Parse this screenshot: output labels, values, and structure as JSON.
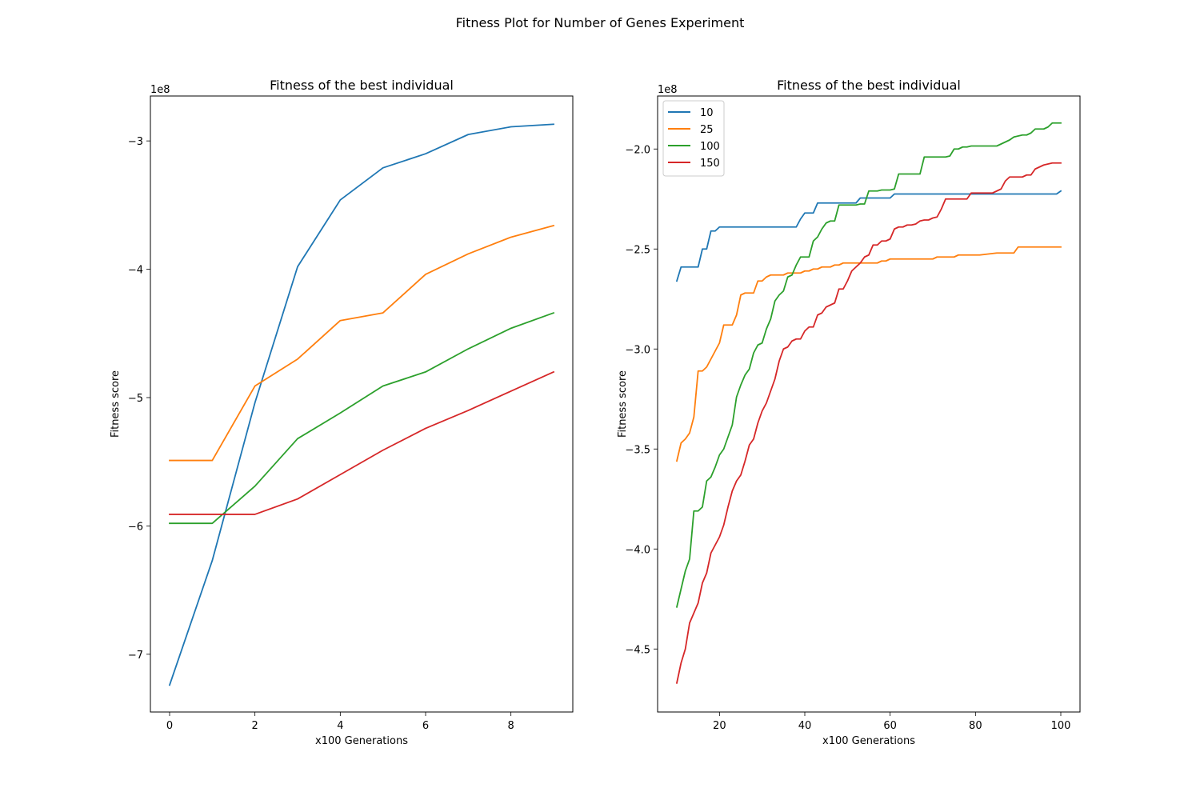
{
  "figure": {
    "suptitle": "Fitness Plot for Number of Genes Experiment"
  },
  "chart_data": [
    {
      "type": "line",
      "title": "Fitness of the best individual",
      "xlabel": "x100 Generations",
      "ylabel": "Fitness score",
      "y_multiplier": "1e8",
      "xlim": [
        -0.45,
        9.45
      ],
      "ylim": [
        -7.45,
        -2.65
      ],
      "xticks": [
        0,
        2,
        4,
        6,
        8
      ],
      "yticks": [
        -7,
        -6,
        -5,
        -4,
        -3
      ],
      "legend": null,
      "series": [
        {
          "name": "10",
          "color": "#1f77b4",
          "x": [
            0,
            1,
            2,
            3,
            4,
            5,
            6,
            7,
            8,
            9
          ],
          "y": [
            -7.24,
            -6.27,
            -5.04,
            -3.98,
            -3.46,
            -3.21,
            -3.1,
            -2.95,
            -2.89,
            -2.87
          ]
        },
        {
          "name": "25",
          "color": "#ff7f0e",
          "x": [
            0,
            1,
            2,
            3,
            4,
            5,
            6,
            7,
            8,
            9
          ],
          "y": [
            -5.49,
            -5.49,
            -4.91,
            -4.7,
            -4.4,
            -4.34,
            -4.04,
            -3.88,
            -3.75,
            -3.66
          ]
        },
        {
          "name": "100",
          "color": "#2ca02c",
          "x": [
            0,
            1,
            2,
            3,
            4,
            5,
            6,
            7,
            8,
            9
          ],
          "y": [
            -5.98,
            -5.98,
            -5.69,
            -5.32,
            -5.12,
            -4.91,
            -4.8,
            -4.62,
            -4.46,
            -4.34
          ]
        },
        {
          "name": "150",
          "color": "#d62728",
          "x": [
            0,
            1,
            2,
            3,
            4,
            5,
            6,
            7,
            8,
            9
          ],
          "y": [
            -5.91,
            -5.91,
            -5.91,
            -5.79,
            -5.6,
            -5.41,
            -5.24,
            -5.1,
            -4.95,
            -4.8
          ]
        }
      ]
    },
    {
      "type": "line",
      "title": "Fitness of the best individual",
      "xlabel": "x100 Generations",
      "ylabel": "Fitness score",
      "y_multiplier": "1e8",
      "xlim": [
        5.5,
        104.5
      ],
      "ylim": [
        -4.815,
        -1.735
      ],
      "xticks": [
        20,
        40,
        60,
        80,
        100
      ],
      "yticks": [
        -4.5,
        -4.0,
        -3.5,
        -3.0,
        -2.5,
        -2.0
      ],
      "tick_format": "fixed1",
      "legend": "upper-left",
      "series": [
        {
          "name": "10",
          "color": "#1f77b4",
          "x": [
            10,
            11,
            15,
            16,
            17,
            18,
            19,
            20,
            38,
            39,
            40,
            42,
            43,
            52,
            53,
            60,
            61,
            99,
            100
          ],
          "y": [
            -2.66,
            -2.59,
            -2.59,
            -2.5,
            -2.5,
            -2.41,
            -2.41,
            -2.39,
            -2.39,
            -2.35,
            -2.32,
            -2.32,
            -2.27,
            -2.27,
            -2.245,
            -2.245,
            -2.225,
            -2.225,
            -2.21
          ]
        },
        {
          "name": "25",
          "color": "#ff7f0e",
          "x": [
            10,
            11,
            12,
            13,
            14,
            15,
            16,
            17,
            18,
            19,
            20,
            21,
            22,
            23,
            24,
            25,
            26,
            27,
            28,
            29,
            30,
            31,
            32,
            33,
            34,
            35,
            36,
            37,
            38,
            39,
            40,
            41,
            42,
            43,
            44,
            45,
            46,
            47,
            48,
            49,
            50,
            55,
            56,
            57,
            58,
            59,
            60,
            65,
            66,
            70,
            71,
            75,
            76,
            80,
            81,
            85,
            86,
            89,
            90,
            100
          ],
          "y": [
            -3.56,
            -3.47,
            -3.45,
            -3.42,
            -3.34,
            -3.11,
            -3.11,
            -3.09,
            -3.05,
            -3.01,
            -2.97,
            -2.88,
            -2.88,
            -2.88,
            -2.83,
            -2.73,
            -2.72,
            -2.72,
            -2.72,
            -2.66,
            -2.66,
            -2.64,
            -2.63,
            -2.63,
            -2.63,
            -2.63,
            -2.62,
            -2.62,
            -2.62,
            -2.62,
            -2.61,
            -2.61,
            -2.6,
            -2.6,
            -2.59,
            -2.59,
            -2.59,
            -2.58,
            -2.58,
            -2.57,
            -2.57,
            -2.57,
            -2.57,
            -2.57,
            -2.56,
            -2.56,
            -2.55,
            -2.55,
            -2.55,
            -2.55,
            -2.54,
            -2.54,
            -2.53,
            -2.53,
            -2.53,
            -2.52,
            -2.52,
            -2.52,
            -2.49,
            -2.49
          ]
        },
        {
          "name": "100",
          "color": "#2ca02c",
          "x": [
            10,
            11,
            12,
            13,
            14,
            15,
            16,
            17,
            18,
            19,
            20,
            21,
            22,
            23,
            24,
            25,
            26,
            27,
            28,
            29,
            30,
            31,
            32,
            33,
            34,
            35,
            36,
            37,
            38,
            39,
            40,
            41,
            42,
            43,
            44,
            45,
            46,
            47,
            48,
            49,
            50,
            51,
            52,
            53,
            54,
            55,
            56,
            57,
            58,
            59,
            60,
            61,
            62,
            63,
            64,
            65,
            66,
            67,
            68,
            69,
            70,
            71,
            72,
            73,
            74,
            75,
            76,
            77,
            78,
            79,
            80,
            85,
            86,
            87,
            88,
            89,
            90,
            91,
            92,
            93,
            94,
            95,
            96,
            97,
            98,
            99,
            100
          ],
          "y": [
            -4.29,
            -4.2,
            -4.11,
            -4.05,
            -3.81,
            -3.81,
            -3.79,
            -3.66,
            -3.64,
            -3.59,
            -3.53,
            -3.5,
            -3.44,
            -3.38,
            -3.24,
            -3.18,
            -3.13,
            -3.1,
            -3.02,
            -2.98,
            -2.97,
            -2.9,
            -2.85,
            -2.76,
            -2.73,
            -2.71,
            -2.64,
            -2.63,
            -2.58,
            -2.54,
            -2.54,
            -2.54,
            -2.46,
            -2.44,
            -2.4,
            -2.37,
            -2.36,
            -2.36,
            -2.28,
            -2.28,
            -2.28,
            -2.28,
            -2.28,
            -2.275,
            -2.275,
            -2.21,
            -2.21,
            -2.21,
            -2.205,
            -2.205,
            -2.205,
            -2.2,
            -2.125,
            -2.125,
            -2.125,
            -2.125,
            -2.125,
            -2.125,
            -2.04,
            -2.04,
            -2.04,
            -2.04,
            -2.04,
            -2.04,
            -2.035,
            -2.0,
            -2.0,
            -1.99,
            -1.99,
            -1.985,
            -1.985,
            -1.985,
            -1.975,
            -1.965,
            -1.955,
            -1.94,
            -1.935,
            -1.93,
            -1.93,
            -1.92,
            -1.9,
            -1.9,
            -1.9,
            -1.89,
            -1.87,
            -1.87,
            -1.87
          ]
        },
        {
          "name": "150",
          "color": "#d62728",
          "x": [
            10,
            11,
            12,
            13,
            14,
            15,
            16,
            17,
            18,
            19,
            20,
            21,
            22,
            23,
            24,
            25,
            26,
            27,
            28,
            29,
            30,
            31,
            32,
            33,
            34,
            35,
            36,
            37,
            38,
            39,
            40,
            41,
            42,
            43,
            44,
            45,
            46,
            47,
            48,
            49,
            50,
            51,
            52,
            53,
            54,
            55,
            56,
            57,
            58,
            59,
            60,
            61,
            62,
            63,
            64,
            65,
            66,
            67,
            68,
            69,
            70,
            71,
            72,
            73,
            74,
            75,
            76,
            77,
            78,
            79,
            80,
            81,
            82,
            83,
            84,
            85,
            86,
            87,
            88,
            89,
            90,
            91,
            92,
            93,
            94,
            95,
            96,
            97,
            98,
            99,
            100
          ],
          "y": [
            -4.67,
            -4.57,
            -4.5,
            -4.37,
            -4.32,
            -4.27,
            -4.17,
            -4.12,
            -4.02,
            -3.98,
            -3.94,
            -3.88,
            -3.79,
            -3.71,
            -3.66,
            -3.63,
            -3.56,
            -3.48,
            -3.45,
            -3.37,
            -3.31,
            -3.27,
            -3.21,
            -3.15,
            -3.06,
            -3.0,
            -2.99,
            -2.96,
            -2.95,
            -2.95,
            -2.91,
            -2.89,
            -2.89,
            -2.83,
            -2.82,
            -2.79,
            -2.78,
            -2.77,
            -2.7,
            -2.7,
            -2.66,
            -2.61,
            -2.59,
            -2.57,
            -2.54,
            -2.53,
            -2.48,
            -2.48,
            -2.46,
            -2.46,
            -2.45,
            -2.4,
            -2.39,
            -2.39,
            -2.38,
            -2.38,
            -2.375,
            -2.36,
            -2.355,
            -2.355,
            -2.345,
            -2.34,
            -2.3,
            -2.25,
            -2.25,
            -2.25,
            -2.25,
            -2.25,
            -2.25,
            -2.22,
            -2.22,
            -2.22,
            -2.22,
            -2.22,
            -2.22,
            -2.21,
            -2.2,
            -2.16,
            -2.14,
            -2.14,
            -2.14,
            -2.14,
            -2.13,
            -2.13,
            -2.1,
            -2.09,
            -2.08,
            -2.075,
            -2.07,
            -2.07,
            -2.07
          ]
        }
      ]
    }
  ]
}
